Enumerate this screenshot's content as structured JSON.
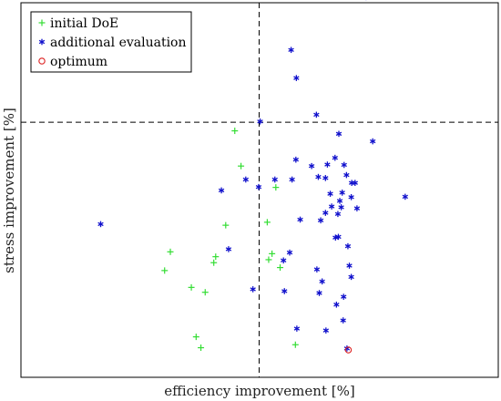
{
  "chart_data": {
    "type": "scatter",
    "xlabel": "efficiency improvement [%]",
    "ylabel": "stress improvement [%]",
    "xlim": [
      0,
      100
    ],
    "ylim": [
      0,
      100
    ],
    "grid": false,
    "legend_position": "top-left",
    "reference_lines": {
      "x": 49.9,
      "y": 68.1
    },
    "series": [
      {
        "name": "initial DoE",
        "marker": "plus",
        "color": "#33dd33",
        "x": [
          44.8,
          46.1,
          42.9,
          40.4,
          40.8,
          53.4,
          51.6,
          52.6,
          54.3,
          51.9,
          31.3,
          30.1,
          38.6,
          35.7,
          36.7,
          37.7,
          57.5
        ],
        "y": [
          65.8,
          56.4,
          40.6,
          30.6,
          32.2,
          50.7,
          41.4,
          33.0,
          29.3,
          31.4,
          33.5,
          28.5,
          22.7,
          24.0,
          10.8,
          7.9,
          8.7
        ]
      },
      {
        "name": "additional evaluation",
        "marker": "asterisk",
        "color": "#1010cc",
        "x": [
          72.3,
          56.6,
          57.7,
          61.9,
          50.1,
          66.6,
          73.7,
          57.6,
          47.1,
          53.2,
          42.0,
          49.8,
          56.8,
          60.9,
          58.5,
          63.8,
          64.2,
          62.3,
          68.2,
          65.8,
          67.7,
          69.3,
          70.0,
          67.3,
          69.2,
          70.4,
          66.8,
          64.8,
          62.8,
          63.8,
          65.1,
          66.4,
          67.1,
          80.5,
          43.5,
          56.3,
          55.0,
          48.6,
          65.9,
          66.5,
          68.5,
          62.0,
          63.1,
          69.2,
          68.8,
          62.5,
          67.6,
          55.2,
          57.8,
          66.1,
          63.9,
          16.7,
          67.5,
          68.3
        ],
        "y": [
          101.5,
          87.4,
          79.9,
          70.1,
          68.3,
          65.0,
          63.0,
          58.1,
          52.8,
          52.8,
          49.9,
          50.8,
          52.8,
          56.4,
          42.1,
          53.2,
          56.8,
          53.5,
          54.0,
          58.6,
          56.7,
          51.9,
          51.9,
          49.3,
          48.1,
          45.1,
          47.1,
          49.0,
          41.9,
          43.9,
          45.6,
          43.6,
          45.4,
          48.2,
          34.2,
          33.3,
          31.2,
          23.5,
          37.3,
          37.5,
          35.0,
          28.8,
          25.6,
          26.8,
          29.8,
          22.5,
          21.5,
          23.0,
          13.0,
          19.4,
          12.5,
          40.9,
          15.2,
          7.7
        ]
      },
      {
        "name": "optimum",
        "marker": "circle",
        "color": "#dd2222",
        "x": [
          68.6
        ],
        "y": [
          7.3
        ]
      }
    ]
  }
}
